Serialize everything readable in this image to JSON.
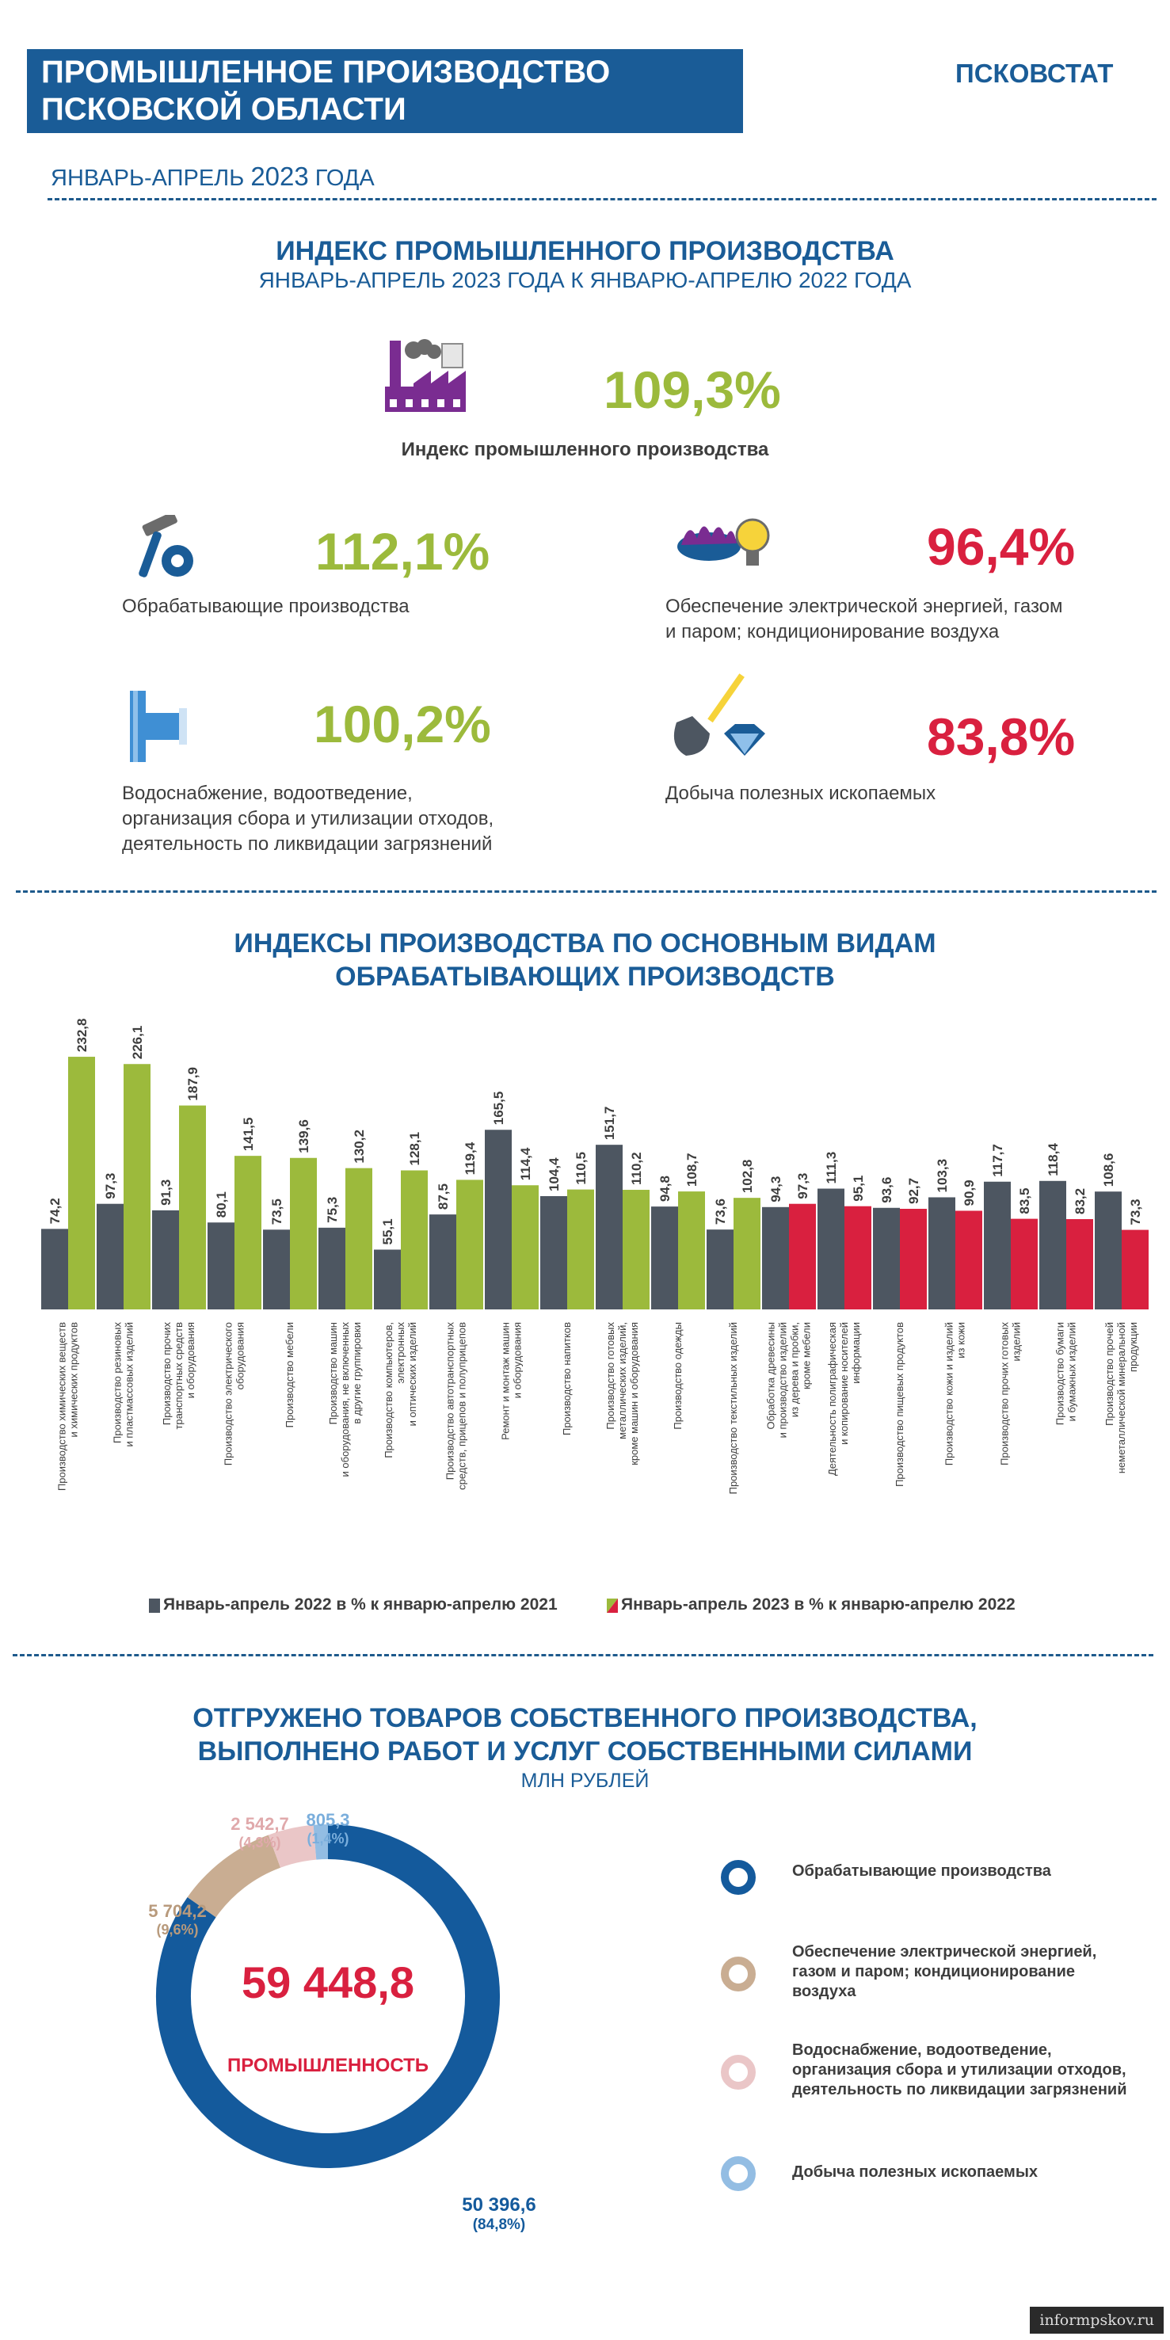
{
  "header": {
    "title_line1": "ПРОМЫШЛЕННОЕ ПРОИЗВОДСТВО",
    "title_line2": "ПСКОВСКОЙ ОБЛАСТИ",
    "brand": "ПСКОВСТАТ",
    "period_prefix": "ЯНВАРЬ-АПРЕЛЬ ",
    "period_year": "2023",
    "period_suffix": " ГОДА"
  },
  "index_section": {
    "title": "ИНДЕКС ПРОМЫШЛЕННОГО ПРОИЗВОДСТВА",
    "subtitle": "ЯНВАРЬ-АПРЕЛЬ 2023 ГОДА К ЯНВАРЮ-АПРЕЛЮ 2022 ГОДА",
    "main_value": "109,3%",
    "main_label": "Индекс промышленного производства",
    "items": [
      {
        "value": "112,1%",
        "label_lines": [
          "Обрабатывающие производства"
        ],
        "color": "#9cba3c",
        "icon": "hammer-gear-icon"
      },
      {
        "value": "96,4%",
        "label_lines": [
          "Обеспечение  электрической энергией, газом",
          "и паром; кондиционирование воздуха"
        ],
        "color": "#d9203f",
        "icon": "gas-burner-bulb-icon"
      },
      {
        "value": "100,2%",
        "label_lines": [
          "Водоснабжение, водоотведение,",
          "организация сбора и утилизации отходов,",
          "деятельность по ликвидации загрязнений"
        ],
        "color": "#9cba3c",
        "icon": "water-pipe-icon"
      },
      {
        "value": "83,8%",
        "label_lines": [
          "Добыча полезных ископаемых"
        ],
        "color": "#d9203f",
        "icon": "shovel-diamond-icon"
      }
    ]
  },
  "chart_title_line1": "ИНДЕКСЫ ПРОИЗВОДСТВА ПО ОСНОВНЫМ ВИДАМ",
  "chart_title_line2": "ОБРАБАТЫВАЮЩИХ ПРОИЗВОДСТВ",
  "chart_data": {
    "type": "bar",
    "title": "ИНДЕКСЫ ПРОИЗВОДСТВА ПО ОСНОВНЫМ ВИДАМ ОБРАБАТЫВАЮЩИХ ПРОИЗВОДСТВ",
    "ylim": [
      0,
      240
    ],
    "categories": [
      [
        "Производство химических веществ",
        "и химических продуктов"
      ],
      [
        "Производство резиновых",
        "и пластмассовых изделий"
      ],
      [
        "Производство прочих",
        "транспортных средств",
        "и оборудования"
      ],
      [
        "Производство электрического",
        "оборудования"
      ],
      [
        "Производство мебели"
      ],
      [
        "Производство машин",
        "и оборудования, не включенных",
        "в другие группировки"
      ],
      [
        "Производство компьютеров,",
        "электронных",
        "и оптических изделий"
      ],
      [
        "Производство автотранспортных",
        "средств, прицепов и полуприцепов"
      ],
      [
        "Ремонт и монтаж машин",
        "и оборудования"
      ],
      [
        "Производство напитков"
      ],
      [
        "Производство готовых",
        "металлических изделий,",
        "кроме машин и оборудования"
      ],
      [
        "Производство одежды"
      ],
      [
        "Производство текстильных изделий"
      ],
      [
        "Обработка древесины",
        "и производство изделий",
        "из дерева и пробки,",
        "кроме мебели"
      ],
      [
        "Деятельность полиграфическая",
        "и копирование носителей",
        "информации"
      ],
      [
        "Производство пищевых продуктов"
      ],
      [
        "Производство кожи и изделий",
        "из кожи"
      ],
      [
        "Производство прочих готовых",
        "изделий"
      ],
      [
        "Производство бумаги",
        "и бумажных изделий"
      ],
      [
        "Производство прочей",
        "неметаллической минеральной",
        "продукции"
      ]
    ],
    "series": [
      {
        "name": "Январь-апрель 2022 в % к январю-апрелю 2021",
        "color": "#4d5661",
        "values": [
          74.2,
          97.3,
          91.3,
          80.1,
          73.5,
          75.3,
          55.1,
          87.5,
          165.5,
          104.4,
          151.7,
          94.8,
          73.6,
          94.3,
          111.3,
          93.6,
          103.3,
          117.7,
          118.4,
          108.6
        ],
        "labels": [
          "74,2",
          "97,3",
          "91,3",
          "80,1",
          "73,5",
          "75,3",
          "55,1",
          "87,5",
          "165,5",
          "104,4",
          "151,7",
          "94,8",
          "73,6",
          "94,3",
          "111,3",
          "93,6",
          "103,3",
          "117,7",
          "118,4",
          "108,6"
        ]
      },
      {
        "name": "Январь-апрель 2023 в % к январю-апрелю 2022",
        "color_up": "#9cba3c",
        "color_down": "#d9203f",
        "values": [
          232.8,
          226.1,
          187.9,
          141.5,
          139.6,
          130.2,
          128.1,
          119.4,
          114.4,
          110.5,
          110.2,
          108.7,
          102.8,
          97.3,
          95.1,
          92.7,
          90.9,
          83.5,
          83.2,
          73.3
        ],
        "labels": [
          "232,8",
          "226,1",
          "187,9",
          "141,5",
          "139,6",
          "130,2",
          "128,1",
          "119,4",
          "114,4",
          "110,5",
          "110,2",
          "108,7",
          "102,8",
          "97,3",
          "95,1",
          "92,7",
          "90,9",
          "83,5",
          "83,2",
          "73,3"
        ]
      }
    ],
    "legend": [
      "Январь-апрель 2022 в % к январю-апрелю 2021",
      "Январь-апрель 2023 в % к январю-апрелю 2022"
    ]
  },
  "pie_section": {
    "title_line1": "ОТГРУЖЕНО ТОВАРОВ СОБСТВЕННОГО ПРОИЗВОДСТВА,",
    "title_line2": "ВЫПОЛНЕНО РАБОТ И УСЛУГ СОБСТВЕННЫМИ СИЛАМИ",
    "unit": "МЛН РУБЛЕЙ",
    "total": "59 448,8",
    "total_label": "ПРОМЫШЛЕННОСТЬ",
    "pie_data": {
      "type": "pie",
      "slices": [
        {
          "name": "Обрабатывающие производства",
          "value": 50396.6,
          "value_label": "50 396,6",
          "share_label": "(84,8%)",
          "color": "#145a9c"
        },
        {
          "name": "Обеспечение электрической энергией, газом и паром; кондиционирование воздуха",
          "value": 5704.2,
          "value_label": "5 704,2",
          "share_label": "(9,6%)",
          "color": "#c9ad92"
        },
        {
          "name": "Водоснабжение, водоотведение, организация сбора и утилизации отходов, деятельность по ликвидации загрязнений",
          "value": 2542.7,
          "value_label": "2 542,7",
          "share_label": "(4,3%)",
          "color": "#eac6c7"
        },
        {
          "name": "Добыча полезных ископаемых",
          "value": 805.3,
          "value_label": "805,3",
          "share_label": "(1,4%)",
          "color": "#93bde3"
        }
      ]
    },
    "legend": [
      {
        "lines": [
          "Обрабатывающие производства"
        ],
        "color": "#145a9c"
      },
      {
        "lines": [
          "Обеспечение электрической энергией,",
          "газом и паром; кондиционирование",
          "воздуха"
        ],
        "color": "#c9ad92"
      },
      {
        "lines": [
          "Водоснабжение, водоотведение,",
          "организация сбора и утилизации отходов,",
          "деятельность по ликвидации загрязнений"
        ],
        "color": "#eac6c7"
      },
      {
        "lines": [
          "Добыча полезных ископаемых"
        ],
        "color": "#93bde3"
      }
    ]
  },
  "watermark": "informpskov.ru"
}
